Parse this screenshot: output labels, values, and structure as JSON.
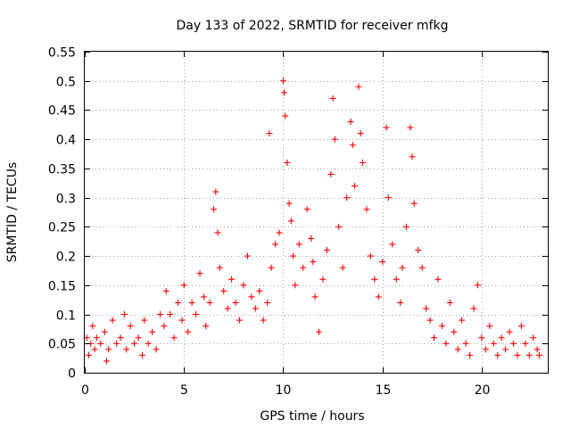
{
  "chart_data": {
    "type": "scatter",
    "title": "Day 133 of 2022, SRMTID for receiver mfkg",
    "xlabel": "GPS time / hours",
    "ylabel": "SRMTID / TECUs",
    "xlim": [
      0,
      23.33
    ],
    "ylim": [
      0,
      0.55
    ],
    "xticks": [
      "0",
      "5",
      "10",
      "15",
      "20"
    ],
    "xtick_values": [
      0,
      5,
      10,
      15,
      20
    ],
    "yticks": [
      "0",
      "0.05",
      "0.1",
      "0.15",
      "0.2",
      "0.25",
      "0.3",
      "0.35",
      "0.4",
      "0.45",
      "0.5",
      "0.55"
    ],
    "ytick_values": [
      0,
      0.05,
      0.1,
      0.15,
      0.2,
      0.25,
      0.3,
      0.35,
      0.4,
      0.45,
      0.5,
      0.55
    ],
    "grid": true,
    "marker": "+",
    "color": "#ff0000",
    "series": [
      {
        "name": "SRMTID",
        "points": [
          [
            0.1,
            0.06
          ],
          [
            0.2,
            0.03
          ],
          [
            0.3,
            0.05
          ],
          [
            0.4,
            0.08
          ],
          [
            0.5,
            0.04
          ],
          [
            0.6,
            0.06
          ],
          [
            0.8,
            0.05
          ],
          [
            1.0,
            0.07
          ],
          [
            1.1,
            0.02
          ],
          [
            1.2,
            0.04
          ],
          [
            1.4,
            0.09
          ],
          [
            1.6,
            0.05
          ],
          [
            1.8,
            0.06
          ],
          [
            2.0,
            0.1
          ],
          [
            2.1,
            0.04
          ],
          [
            2.3,
            0.08
          ],
          [
            2.5,
            0.05
          ],
          [
            2.7,
            0.06
          ],
          [
            2.9,
            0.03
          ],
          [
            3.0,
            0.09
          ],
          [
            3.2,
            0.05
          ],
          [
            3.4,
            0.07
          ],
          [
            3.6,
            0.04
          ],
          [
            3.8,
            0.1
          ],
          [
            4.0,
            0.08
          ],
          [
            4.1,
            0.14
          ],
          [
            4.3,
            0.1
          ],
          [
            4.5,
            0.06
          ],
          [
            4.7,
            0.12
          ],
          [
            4.9,
            0.09
          ],
          [
            5.0,
            0.15
          ],
          [
            5.2,
            0.07
          ],
          [
            5.4,
            0.12
          ],
          [
            5.6,
            0.1
          ],
          [
            5.8,
            0.17
          ],
          [
            6.0,
            0.13
          ],
          [
            6.1,
            0.08
          ],
          [
            6.3,
            0.12
          ],
          [
            6.5,
            0.28
          ],
          [
            6.6,
            0.31
          ],
          [
            6.7,
            0.24
          ],
          [
            6.8,
            0.18
          ],
          [
            7.0,
            0.14
          ],
          [
            7.2,
            0.11
          ],
          [
            7.4,
            0.16
          ],
          [
            7.6,
            0.12
          ],
          [
            7.8,
            0.09
          ],
          [
            8.0,
            0.15
          ],
          [
            8.2,
            0.2
          ],
          [
            8.4,
            0.13
          ],
          [
            8.6,
            0.11
          ],
          [
            8.8,
            0.14
          ],
          [
            9.0,
            0.09
          ],
          [
            9.2,
            0.12
          ],
          [
            9.3,
            0.41
          ],
          [
            9.4,
            0.18
          ],
          [
            9.6,
            0.22
          ],
          [
            9.8,
            0.24
          ],
          [
            10.0,
            0.5
          ],
          [
            10.05,
            0.48
          ],
          [
            10.1,
            0.44
          ],
          [
            10.2,
            0.36
          ],
          [
            10.3,
            0.29
          ],
          [
            10.4,
            0.26
          ],
          [
            10.5,
            0.2
          ],
          [
            10.6,
            0.15
          ],
          [
            10.8,
            0.22
          ],
          [
            11.0,
            0.18
          ],
          [
            11.2,
            0.28
          ],
          [
            11.4,
            0.23
          ],
          [
            11.5,
            0.19
          ],
          [
            11.6,
            0.13
          ],
          [
            11.8,
            0.07
          ],
          [
            12.0,
            0.16
          ],
          [
            12.2,
            0.21
          ],
          [
            12.4,
            0.34
          ],
          [
            12.5,
            0.47
          ],
          [
            12.6,
            0.4
          ],
          [
            12.8,
            0.25
          ],
          [
            13.0,
            0.18
          ],
          [
            13.2,
            0.3
          ],
          [
            13.4,
            0.43
          ],
          [
            13.5,
            0.39
          ],
          [
            13.6,
            0.32
          ],
          [
            13.8,
            0.49
          ],
          [
            13.9,
            0.41
          ],
          [
            14.0,
            0.36
          ],
          [
            14.2,
            0.28
          ],
          [
            14.4,
            0.2
          ],
          [
            14.6,
            0.16
          ],
          [
            14.8,
            0.13
          ],
          [
            15.0,
            0.19
          ],
          [
            15.2,
            0.42
          ],
          [
            15.3,
            0.3
          ],
          [
            15.5,
            0.22
          ],
          [
            15.7,
            0.16
          ],
          [
            15.9,
            0.12
          ],
          [
            16.0,
            0.18
          ],
          [
            16.2,
            0.25
          ],
          [
            16.4,
            0.42
          ],
          [
            16.5,
            0.37
          ],
          [
            16.6,
            0.29
          ],
          [
            16.8,
            0.21
          ],
          [
            17.0,
            0.18
          ],
          [
            17.2,
            0.11
          ],
          [
            17.4,
            0.09
          ],
          [
            17.6,
            0.06
          ],
          [
            17.8,
            0.16
          ],
          [
            18.0,
            0.08
          ],
          [
            18.2,
            0.05
          ],
          [
            18.4,
            0.12
          ],
          [
            18.6,
            0.07
          ],
          [
            18.8,
            0.04
          ],
          [
            19.0,
            0.09
          ],
          [
            19.2,
            0.05
          ],
          [
            19.4,
            0.03
          ],
          [
            19.6,
            0.11
          ],
          [
            19.8,
            0.15
          ],
          [
            20.0,
            0.06
          ],
          [
            20.2,
            0.04
          ],
          [
            20.4,
            0.08
          ],
          [
            20.6,
            0.05
          ],
          [
            20.8,
            0.03
          ],
          [
            21.0,
            0.06
          ],
          [
            21.2,
            0.04
          ],
          [
            21.4,
            0.07
          ],
          [
            21.6,
            0.05
          ],
          [
            21.8,
            0.03
          ],
          [
            22.0,
            0.08
          ],
          [
            22.2,
            0.05
          ],
          [
            22.4,
            0.03
          ],
          [
            22.6,
            0.06
          ],
          [
            22.8,
            0.04
          ],
          [
            22.9,
            0.03
          ]
        ]
      }
    ]
  }
}
